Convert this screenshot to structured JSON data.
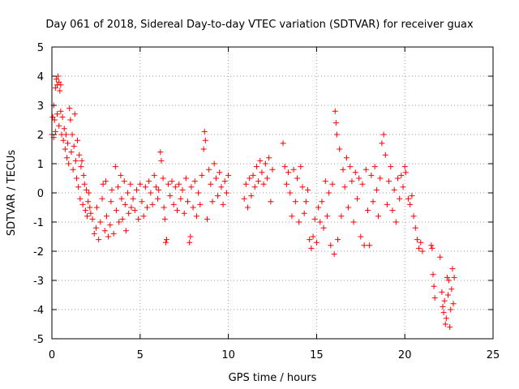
{
  "chart_data": {
    "type": "scatter",
    "title": "Day 061 of 2018, Sidereal Day-to-day VTEC variation (SDTVAR) for receiver guax",
    "xlabel": "GPS time / hours",
    "ylabel": "SDTVAR / TECUs",
    "xlim": [
      0,
      25
    ],
    "ylim": [
      -5,
      5
    ],
    "xticks": [
      0,
      5,
      10,
      15,
      20,
      25
    ],
    "yticks": [
      -5,
      -4,
      -3,
      -2,
      -1,
      0,
      1,
      2,
      3,
      4,
      5
    ],
    "grid": true,
    "legend": "none",
    "marker": "+",
    "color": "#ff0000",
    "series": [
      {
        "name": "SDTVAR",
        "points": [
          [
            0.0,
            2.0
          ],
          [
            0.05,
            2.6
          ],
          [
            0.1,
            3.0
          ],
          [
            0.1,
            1.9
          ],
          [
            0.15,
            2.5
          ],
          [
            0.2,
            3.6
          ],
          [
            0.2,
            2.1
          ],
          [
            0.25,
            3.9
          ],
          [
            0.3,
            3.7
          ],
          [
            0.3,
            2.7
          ],
          [
            0.35,
            4.0
          ],
          [
            0.4,
            3.8
          ],
          [
            0.4,
            2.3
          ],
          [
            0.45,
            3.5
          ],
          [
            0.5,
            3.7
          ],
          [
            0.5,
            2.8
          ],
          [
            0.55,
            2.0
          ],
          [
            0.6,
            2.6
          ],
          [
            0.65,
            1.8
          ],
          [
            0.7,
            2.2
          ],
          [
            0.75,
            1.5
          ],
          [
            0.8,
            2.0
          ],
          [
            0.85,
            1.2
          ],
          [
            0.9,
            1.7
          ],
          [
            0.95,
            1.0
          ],
          [
            1.0,
            2.9
          ],
          [
            1.05,
            2.5
          ],
          [
            1.1,
            1.4
          ],
          [
            1.15,
            2.0
          ],
          [
            1.2,
            0.8
          ],
          [
            1.25,
            1.6
          ],
          [
            1.3,
            2.7
          ],
          [
            1.35,
            1.1
          ],
          [
            1.4,
            0.5
          ],
          [
            1.45,
            1.8
          ],
          [
            1.5,
            0.2
          ],
          [
            1.55,
            1.3
          ],
          [
            1.6,
            -0.2
          ],
          [
            1.65,
            0.9
          ],
          [
            1.7,
            1.1
          ],
          [
            1.75,
            -0.4
          ],
          [
            1.8,
            0.6
          ],
          [
            1.85,
            0.3
          ],
          [
            1.9,
            -0.6
          ],
          [
            1.95,
            0.1
          ],
          [
            2.0,
            -0.8
          ],
          [
            2.05,
            -0.3
          ],
          [
            2.1,
            0.0
          ],
          [
            2.15,
            -0.5
          ],
          [
            2.2,
            -0.7
          ],
          [
            2.3,
            -0.9
          ],
          [
            2.4,
            -1.4
          ],
          [
            2.5,
            -1.2
          ],
          [
            2.55,
            -0.5
          ],
          [
            2.65,
            -1.6
          ],
          [
            2.75,
            -1.0
          ],
          [
            2.85,
            -0.2
          ],
          [
            2.9,
            0.3
          ],
          [
            3.0,
            -1.3
          ],
          [
            3.05,
            0.4
          ],
          [
            3.1,
            -0.8
          ],
          [
            3.2,
            -1.5
          ],
          [
            3.3,
            -1.1
          ],
          [
            3.35,
            -0.3
          ],
          [
            3.4,
            0.1
          ],
          [
            3.5,
            -1.4
          ],
          [
            3.6,
            0.9
          ],
          [
            3.65,
            -0.6
          ],
          [
            3.75,
            0.2
          ],
          [
            3.8,
            -1.0
          ],
          [
            3.9,
            0.6
          ],
          [
            3.95,
            -0.2
          ],
          [
            4.0,
            -0.9
          ],
          [
            4.1,
            0.4
          ],
          [
            4.15,
            -0.4
          ],
          [
            4.2,
            -1.3
          ],
          [
            4.3,
            0.0
          ],
          [
            4.35,
            -0.7
          ],
          [
            4.45,
            0.3
          ],
          [
            4.5,
            -0.5
          ],
          [
            4.6,
            -0.2
          ],
          [
            4.7,
            -0.6
          ],
          [
            4.8,
            0.1
          ],
          [
            4.9,
            -0.9
          ],
          [
            5.0,
            0.3
          ],
          [
            5.1,
            -0.3
          ],
          [
            5.2,
            -0.8
          ],
          [
            5.3,
            0.2
          ],
          [
            5.4,
            -0.5
          ],
          [
            5.5,
            0.4
          ],
          [
            5.6,
            0.0
          ],
          [
            5.7,
            -0.4
          ],
          [
            5.8,
            0.6
          ],
          [
            5.9,
            0.2
          ],
          [
            6.0,
            -0.2
          ],
          [
            6.05,
            0.1
          ],
          [
            6.15,
            1.4
          ],
          [
            6.2,
            1.1
          ],
          [
            6.3,
            0.5
          ],
          [
            6.35,
            -0.5
          ],
          [
            6.4,
            -0.9
          ],
          [
            6.45,
            -1.7
          ],
          [
            6.5,
            -1.6
          ],
          [
            6.6,
            0.3
          ],
          [
            6.7,
            -0.1
          ],
          [
            6.8,
            0.4
          ],
          [
            6.9,
            -0.4
          ],
          [
            7.0,
            0.2
          ],
          [
            7.1,
            -0.6
          ],
          [
            7.2,
            0.3
          ],
          [
            7.3,
            -0.2
          ],
          [
            7.4,
            0.1
          ],
          [
            7.5,
            -0.7
          ],
          [
            7.6,
            0.5
          ],
          [
            7.7,
            -0.3
          ],
          [
            7.8,
            -1.7
          ],
          [
            7.85,
            -1.5
          ],
          [
            7.9,
            0.2
          ],
          [
            8.0,
            -0.5
          ],
          [
            8.1,
            0.4
          ],
          [
            8.2,
            -0.8
          ],
          [
            8.3,
            0.0
          ],
          [
            8.4,
            -0.4
          ],
          [
            8.5,
            0.6
          ],
          [
            8.6,
            1.5
          ],
          [
            8.65,
            2.1
          ],
          [
            8.7,
            1.8
          ],
          [
            8.8,
            -0.9
          ],
          [
            8.9,
            0.8
          ],
          [
            9.0,
            0.3
          ],
          [
            9.1,
            -0.3
          ],
          [
            9.2,
            1.0
          ],
          [
            9.3,
            0.5
          ],
          [
            9.4,
            -0.1
          ],
          [
            9.5,
            0.7
          ],
          [
            9.6,
            0.2
          ],
          [
            9.7,
            -0.4
          ],
          [
            9.8,
            0.4
          ],
          [
            9.9,
            0.0
          ],
          [
            10.0,
            0.6
          ],
          [
            10.9,
            -0.2
          ],
          [
            11.0,
            0.3
          ],
          [
            11.1,
            -0.5
          ],
          [
            11.2,
            0.5
          ],
          [
            11.3,
            -0.1
          ],
          [
            11.4,
            0.6
          ],
          [
            11.5,
            0.2
          ],
          [
            11.6,
            0.9
          ],
          [
            11.7,
            0.4
          ],
          [
            11.8,
            1.1
          ],
          [
            11.9,
            0.7
          ],
          [
            12.0,
            0.3
          ],
          [
            12.1,
            1.0
          ],
          [
            12.2,
            0.5
          ],
          [
            12.3,
            1.2
          ],
          [
            12.4,
            -0.3
          ],
          [
            12.5,
            0.8
          ],
          [
            13.1,
            1.7
          ],
          [
            13.2,
            0.9
          ],
          [
            13.3,
            0.3
          ],
          [
            13.4,
            0.7
          ],
          [
            13.5,
            0.0
          ],
          [
            13.6,
            -0.8
          ],
          [
            13.7,
            0.8
          ],
          [
            13.8,
            -0.3
          ],
          [
            13.9,
            0.5
          ],
          [
            14.0,
            -1.0
          ],
          [
            14.1,
            0.9
          ],
          [
            14.2,
            0.2
          ],
          [
            14.3,
            -0.7
          ],
          [
            14.4,
            -0.3
          ],
          [
            14.5,
            0.1
          ],
          [
            14.6,
            -1.6
          ],
          [
            14.7,
            -1.9
          ],
          [
            14.8,
            -1.5
          ],
          [
            14.9,
            -0.9
          ],
          [
            15.0,
            -1.7
          ],
          [
            15.1,
            -0.5
          ],
          [
            15.2,
            -1.0
          ],
          [
            15.3,
            -0.3
          ],
          [
            15.4,
            -1.2
          ],
          [
            15.5,
            0.4
          ],
          [
            15.6,
            -0.8
          ],
          [
            15.7,
            0.0
          ],
          [
            15.8,
            -1.8
          ],
          [
            15.9,
            0.3
          ],
          [
            16.0,
            -2.1
          ],
          [
            16.05,
            2.8
          ],
          [
            16.1,
            2.4
          ],
          [
            16.15,
            2.0
          ],
          [
            16.2,
            -1.6
          ],
          [
            16.3,
            1.5
          ],
          [
            16.4,
            -0.8
          ],
          [
            16.5,
            0.8
          ],
          [
            16.6,
            0.2
          ],
          [
            16.7,
            1.2
          ],
          [
            16.8,
            -0.5
          ],
          [
            16.9,
            0.9
          ],
          [
            17.0,
            0.4
          ],
          [
            17.1,
            -1.0
          ],
          [
            17.2,
            0.7
          ],
          [
            17.3,
            -0.2
          ],
          [
            17.4,
            0.5
          ],
          [
            17.5,
            -1.5
          ],
          [
            17.6,
            0.3
          ],
          [
            17.7,
            -1.8
          ],
          [
            17.8,
            0.8
          ],
          [
            17.9,
            -0.6
          ],
          [
            18.0,
            -1.8
          ],
          [
            18.1,
            0.6
          ],
          [
            18.2,
            -0.3
          ],
          [
            18.3,
            0.9
          ],
          [
            18.4,
            0.1
          ],
          [
            18.5,
            -0.8
          ],
          [
            18.6,
            0.5
          ],
          [
            18.7,
            1.7
          ],
          [
            18.8,
            2.0
          ],
          [
            18.9,
            1.3
          ],
          [
            19.0,
            -0.4
          ],
          [
            19.1,
            0.4
          ],
          [
            19.2,
            0.9
          ],
          [
            19.3,
            -0.6
          ],
          [
            19.4,
            0.1
          ],
          [
            19.5,
            -1.0
          ],
          [
            19.6,
            0.5
          ],
          [
            19.7,
            -0.2
          ],
          [
            19.8,
            0.6
          ],
          [
            19.9,
            0.2
          ],
          [
            20.0,
            0.9
          ],
          [
            20.05,
            0.7
          ],
          [
            20.2,
            -0.2
          ],
          [
            20.3,
            -0.4
          ],
          [
            20.4,
            -0.1
          ],
          [
            20.5,
            -0.8
          ],
          [
            20.6,
            -1.2
          ],
          [
            20.7,
            -1.6
          ],
          [
            20.8,
            -1.9
          ],
          [
            20.9,
            -1.7
          ],
          [
            21.0,
            -2.0
          ],
          [
            21.5,
            -1.8
          ],
          [
            21.55,
            -1.9
          ],
          [
            21.6,
            -2.8
          ],
          [
            21.65,
            -3.2
          ],
          [
            21.7,
            -3.6
          ],
          [
            22.0,
            -2.2
          ],
          [
            22.1,
            -3.4
          ],
          [
            22.15,
            -3.9
          ],
          [
            22.2,
            -4.1
          ],
          [
            22.25,
            -3.7
          ],
          [
            22.3,
            -4.5
          ],
          [
            22.35,
            -4.3
          ],
          [
            22.4,
            -2.9
          ],
          [
            22.45,
            -3.5
          ],
          [
            22.5,
            -3.0
          ],
          [
            22.55,
            -4.6
          ],
          [
            22.6,
            -4.0
          ],
          [
            22.65,
            -3.3
          ],
          [
            22.7,
            -2.6
          ],
          [
            22.75,
            -3.8
          ],
          [
            22.8,
            -2.9
          ]
        ]
      }
    ]
  }
}
